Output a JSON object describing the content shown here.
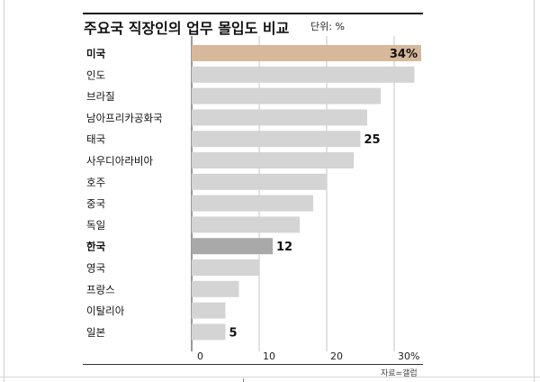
{
  "title": "주요국 직장인의 업무 몰입도 비교",
  "unit_label": "단위: %",
  "source": "자료=갤럽",
  "colors": {
    "highlight": "#d8b89a",
    "korea": "#a9a9a9",
    "default": "#d4d4d4",
    "grid": "#cfcfcf"
  },
  "chart_data": {
    "type": "bar",
    "orientation": "horizontal",
    "categories": [
      "미국",
      "인도",
      "브라질",
      "남아프리카공화국",
      "태국",
      "사우디아라비아",
      "호주",
      "중국",
      "독일",
      "한국",
      "영국",
      "프랑스",
      "이탈리아",
      "일본"
    ],
    "values": [
      34,
      33,
      28,
      26,
      25,
      24,
      20,
      18,
      16,
      12,
      10,
      7,
      5,
      5
    ],
    "value_labels": [
      "34%",
      "",
      "",
      "",
      "25",
      "",
      "",
      "",
      "",
      "12",
      "",
      "",
      "",
      "5"
    ],
    "bold_categories": [
      "미국",
      "한국"
    ],
    "x_ticks": [
      0,
      10,
      20,
      30
    ],
    "x_tick_labels": [
      "0",
      "10",
      "20",
      "30%"
    ],
    "xlim": [
      0,
      34
    ],
    "grid": true
  }
}
